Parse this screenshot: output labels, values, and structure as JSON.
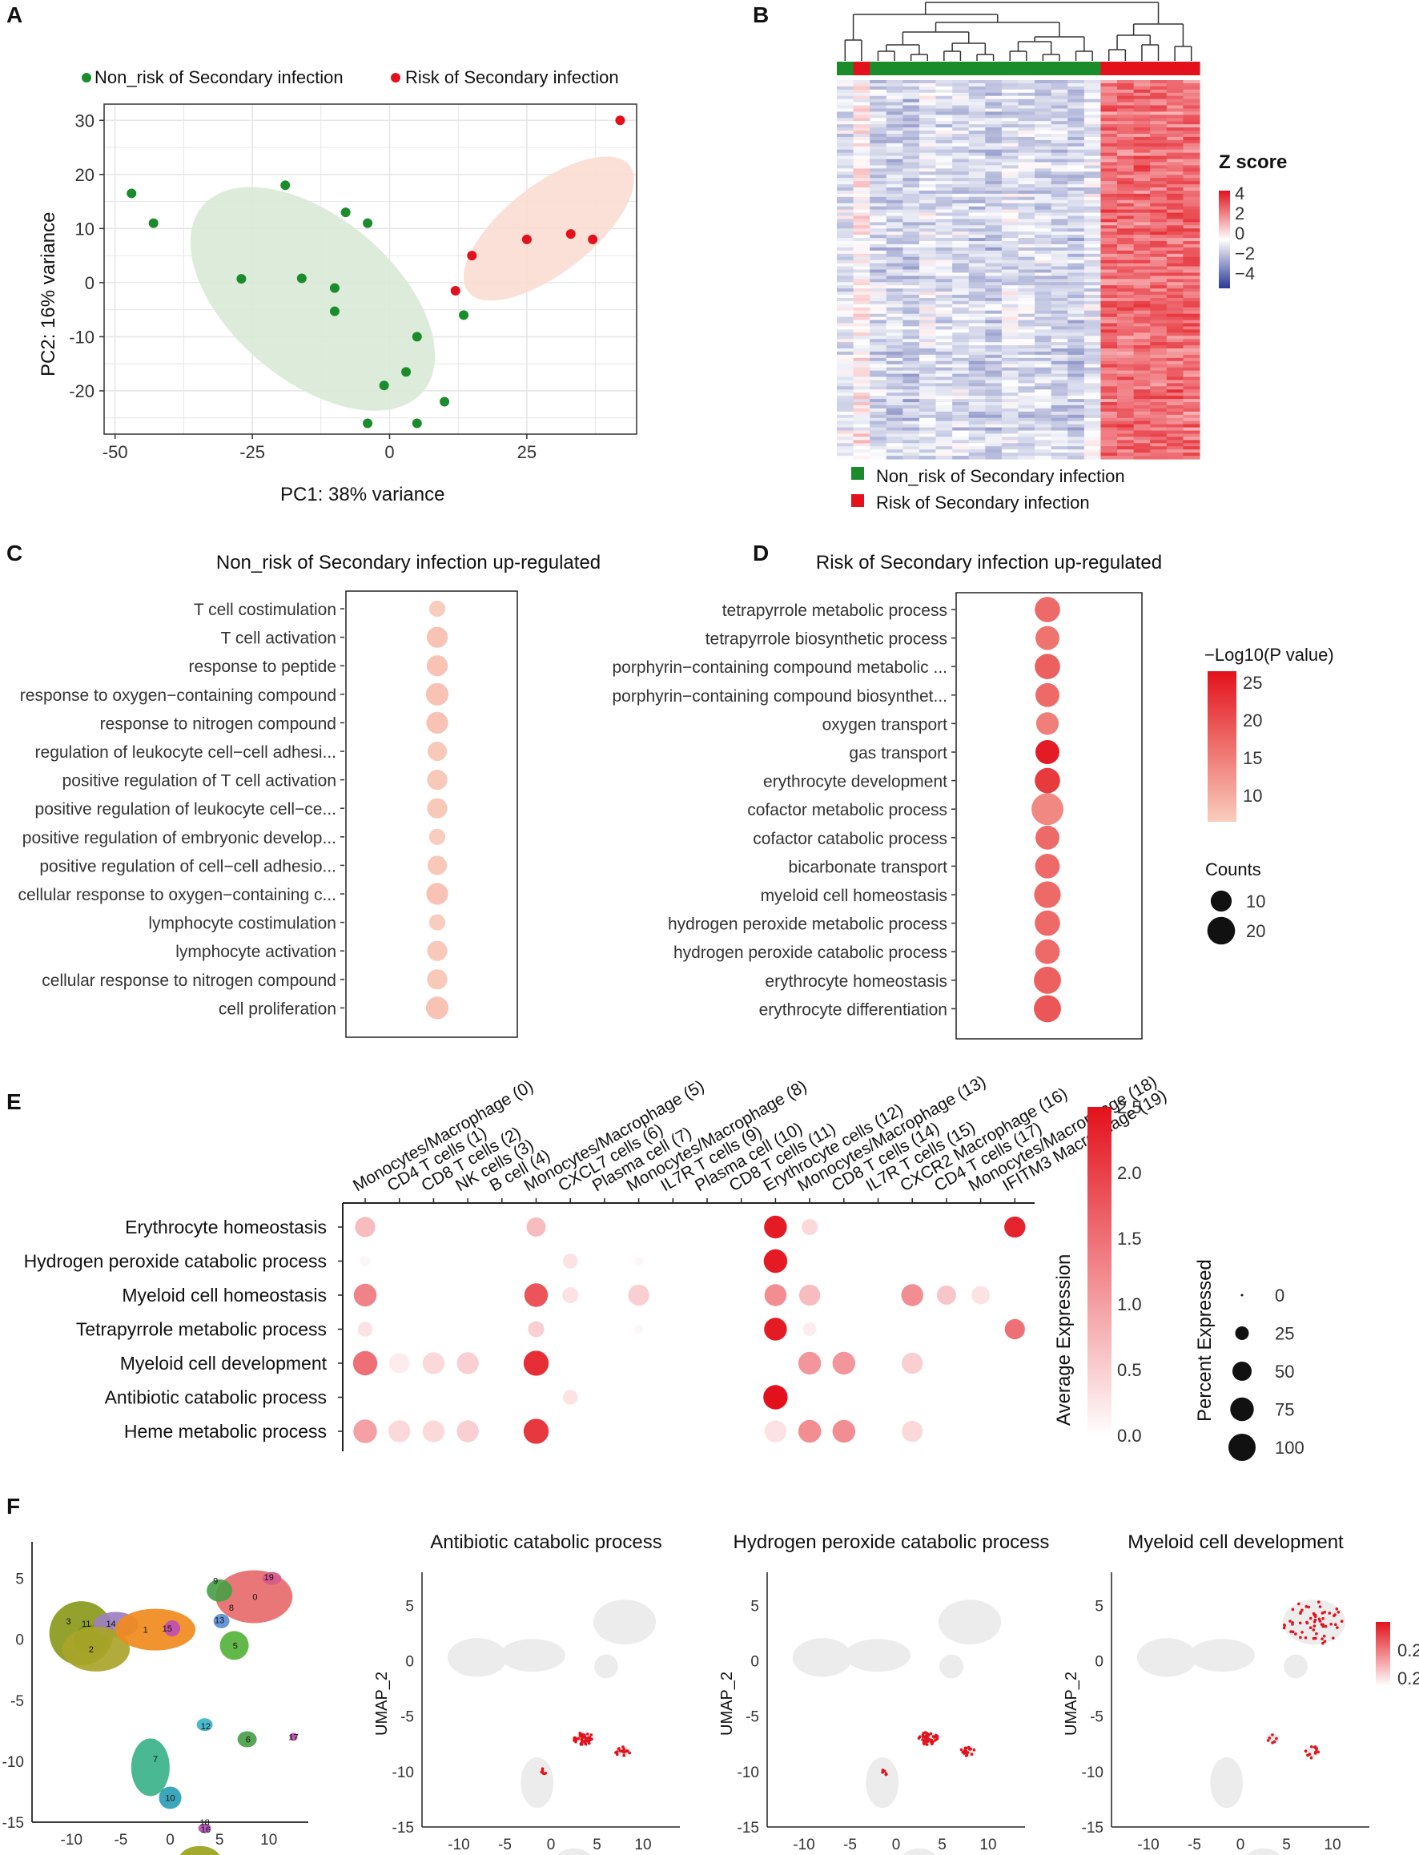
{
  "panels": [
    "A",
    "B",
    "C",
    "D",
    "E",
    "F"
  ],
  "colors": {
    "non_risk": "#1a8c2c",
    "risk": "#e3111b",
    "ellipse_green": "#d9ead6",
    "ellipse_red": "#f9ddd2",
    "heat_high": "#e3111b",
    "heat_low": "#2b3896",
    "dot_low": "#f4c6b5",
    "dot_high": "#e3111b"
  },
  "chart_data": [
    {
      "panel": "A",
      "type": "scatter",
      "xlabel": "PC1: 38% variance",
      "ylabel": "PC2: 16% variance",
      "xlim": [
        -52,
        45
      ],
      "ylim": [
        -28,
        33
      ],
      "xticks": [
        "-50",
        "-25",
        "0",
        "25"
      ],
      "yticks": [
        "-20",
        "-10",
        "0",
        "10",
        "20",
        "30"
      ],
      "legend": [
        "Non_risk of Secondary infection",
        "Risk of Secondary infection"
      ],
      "series": [
        {
          "name": "Non_risk of Secondary infection",
          "color": "#1a8c2c",
          "points": [
            [
              -47,
              16.5
            ],
            [
              -43,
              11
            ],
            [
              -19,
              18
            ],
            [
              -27,
              0.7
            ],
            [
              -16,
              0.8
            ],
            [
              -8,
              13
            ],
            [
              -4,
              11
            ],
            [
              -10,
              -1
            ],
            [
              -10,
              -5.3
            ],
            [
              5,
              -10
            ],
            [
              3,
              -16.5
            ],
            [
              -1,
              -19
            ],
            [
              10,
              -22
            ],
            [
              -4,
              -26
            ],
            [
              5,
              -26
            ],
            [
              13.5,
              -6
            ]
          ]
        },
        {
          "name": "Risk of Secondary infection",
          "color": "#e3111b",
          "points": [
            [
              42,
              30
            ],
            [
              25,
              8
            ],
            [
              33,
              9
            ],
            [
              37,
              8
            ],
            [
              15,
              5
            ],
            [
              12,
              -1.5
            ]
          ]
        }
      ]
    },
    {
      "panel": "B",
      "type": "heatmap",
      "legend_title": "Z score",
      "scale_ticks": [
        "4",
        "2",
        "0",
        "−2",
        "−4"
      ],
      "legend": [
        "Non_risk of Secondary infection",
        "Risk of Secondary infection"
      ],
      "n_samples": 22,
      "n_risk": 6,
      "n_genes": 120
    },
    {
      "panel": "C",
      "type": "scatter",
      "title": "Non_risk of Secondary infection up-regulated",
      "terms": [
        "T cell costimulation",
        "T cell activation",
        "response to peptide",
        "response to oxygen−containing compound",
        "response to nitrogen compound",
        "regulation of leukocyte cell−cell adhesi...",
        "positive regulation of T cell activation",
        "positive regulation of leukocyte cell−ce...",
        "positive regulation of embryonic develop...",
        "positive regulation of cell−cell adhesio...",
        "cellular response to oxygen−containing c...",
        "lymphocyte costimulation",
        "lymphocyte activation",
        "cellular response to nitrogen compound",
        "cell proliferation"
      ],
      "neglog10p": [
        6,
        7,
        7,
        7,
        7,
        6.5,
        6.5,
        6.5,
        6,
        6.5,
        7,
        6,
        6.5,
        6.5,
        7
      ],
      "counts": [
        5,
        10,
        10,
        12,
        11,
        8,
        9,
        9,
        5,
        8,
        11,
        5,
        9,
        9,
        12
      ]
    },
    {
      "panel": "D",
      "type": "scatter",
      "title": "Risk of Secondary infection up-regulated",
      "terms": [
        "tetrapyrrole metabolic process",
        "tetrapyrrole biosynthetic process",
        "porphyrin−containing compound metabolic ...",
        "porphyrin−containing compound biosynthet...",
        "oxygen transport",
        "gas transport",
        "erythrocyte development",
        "cofactor metabolic process",
        "cofactor catabolic process",
        "bicarbonate transport",
        "myeloid cell homeostasis",
        "hydrogen peroxide metabolic process",
        "hydrogen peroxide catabolic process",
        "erythrocyte homeostasis",
        "erythrocyte differentiation"
      ],
      "neglog10p": [
        16,
        15,
        17,
        16,
        14,
        24,
        21,
        13,
        16,
        16,
        16,
        16,
        16,
        17,
        18
      ],
      "counts": [
        16,
        14,
        16,
        14,
        12,
        14,
        16,
        28,
        14,
        15,
        18,
        16,
        15,
        19,
        19
      ],
      "color_legend_title": "−Log10(P value)",
      "color_ticks": [
        "25",
        "20",
        "15",
        "10"
      ],
      "size_legend_title": "Counts",
      "size_ticks": [
        "10",
        "20"
      ]
    },
    {
      "panel": "E",
      "type": "scatter",
      "clusters": [
        "Monocytes/Macrophage (0)",
        "CD4 T cells (1)",
        "CD8 T cells (2)",
        "NK cells (3)",
        "B cell (4)",
        "Monocytes/Macrophage (5)",
        "CXCL7 cells (6)",
        "Plasma cell (7)",
        "Monocytes/Macrophage (8)",
        "IL7R T cells (9)",
        "Plasma cell (10)",
        "CD8 T cells (11)",
        "Erythrocyte cells (12)",
        "Monocytes/Macrophage (13)",
        "CD8 T cells (14)",
        "IL7R T cells (15)",
        "CXCR2 Macrophage (16)",
        "CD4 T cells (17)",
        "Monocytes/Macrophage (18)",
        "IFITM3 Macrophage (19)"
      ],
      "processes": [
        "Erythrocyte homeostasis",
        "Hydrogen peroxide catabolic process",
        "Myeloid cell homeostasis",
        "Tetrapyrrole metabolic process",
        "Myeloid cell development",
        "Antibiotic catabolic process",
        "Heme metabolic process"
      ],
      "dots": [
        [
          0,
          0,
          0.7,
          55
        ],
        [
          0,
          5,
          0.7,
          50
        ],
        [
          0,
          12,
          2.4,
          70
        ],
        [
          0,
          13,
          0.4,
          35
        ],
        [
          0,
          19,
          2.3,
          60
        ],
        [
          1,
          0,
          0.1,
          15
        ],
        [
          1,
          6,
          0.3,
          30
        ],
        [
          1,
          8,
          0.1,
          10
        ],
        [
          1,
          12,
          2.4,
          75
        ],
        [
          2,
          0,
          1.3,
          70
        ],
        [
          2,
          5,
          1.8,
          75
        ],
        [
          2,
          6,
          0.3,
          35
        ],
        [
          2,
          8,
          0.5,
          60
        ],
        [
          2,
          12,
          1.2,
          65
        ],
        [
          2,
          13,
          0.7,
          60
        ],
        [
          2,
          16,
          1.2,
          65
        ],
        [
          2,
          17,
          0.6,
          50
        ],
        [
          2,
          18,
          0.3,
          45
        ],
        [
          3,
          0,
          0.3,
          30
        ],
        [
          3,
          5,
          0.5,
          35
        ],
        [
          3,
          8,
          0.1,
          10
        ],
        [
          3,
          12,
          2.4,
          70
        ],
        [
          3,
          13,
          0.2,
          25
        ],
        [
          3,
          19,
          1.5,
          55
        ],
        [
          4,
          0,
          1.5,
          80
        ],
        [
          4,
          1,
          0.2,
          55
        ],
        [
          4,
          2,
          0.4,
          65
        ],
        [
          4,
          3,
          0.5,
          65
        ],
        [
          4,
          5,
          2.2,
          85
        ],
        [
          4,
          13,
          1.1,
          70
        ],
        [
          4,
          14,
          1.1,
          70
        ],
        [
          4,
          16,
          0.5,
          60
        ],
        [
          5,
          6,
          0.3,
          30
        ],
        [
          5,
          12,
          2.5,
          80
        ],
        [
          6,
          0,
          1.0,
          75
        ],
        [
          6,
          1,
          0.4,
          65
        ],
        [
          6,
          2,
          0.4,
          65
        ],
        [
          6,
          3,
          0.5,
          65
        ],
        [
          6,
          5,
          2.1,
          85
        ],
        [
          6,
          12,
          0.3,
          65
        ],
        [
          6,
          13,
          1.2,
          70
        ],
        [
          6,
          14,
          1.2,
          70
        ],
        [
          6,
          16,
          0.4,
          60
        ]
      ],
      "color_legend_title": "Average Expression",
      "color_ticks": [
        "2.5",
        "2.0",
        "1.5",
        "1.0",
        "0.5",
        "0.0"
      ],
      "size_legend_title": "Percent Expressed",
      "size_ticks": [
        "0",
        "25",
        "50",
        "75",
        "100"
      ]
    },
    {
      "panel": "F",
      "type": "scatter",
      "xlabel": "UMAP_1",
      "ylabel": "UMAP_2",
      "xticks": [
        "-10",
        "-5",
        "0",
        "5",
        "10"
      ],
      "yticks": [
        "5",
        "0",
        "-5",
        "-10",
        "-15"
      ],
      "feature_titles": [
        "Antibiotic catabolic process",
        "Hydrogen peroxide catabolic process",
        "Myeloid cell development"
      ],
      "scale_ticks": [
        "0.25",
        "0.20"
      ],
      "cluster_labels": [
        "3",
        "11",
        "14",
        "2",
        "1",
        "15",
        "9",
        "0",
        "19",
        "12",
        "13",
        "5",
        "8",
        "16",
        "6",
        "17",
        "7",
        "10",
        "18",
        "4"
      ]
    }
  ]
}
